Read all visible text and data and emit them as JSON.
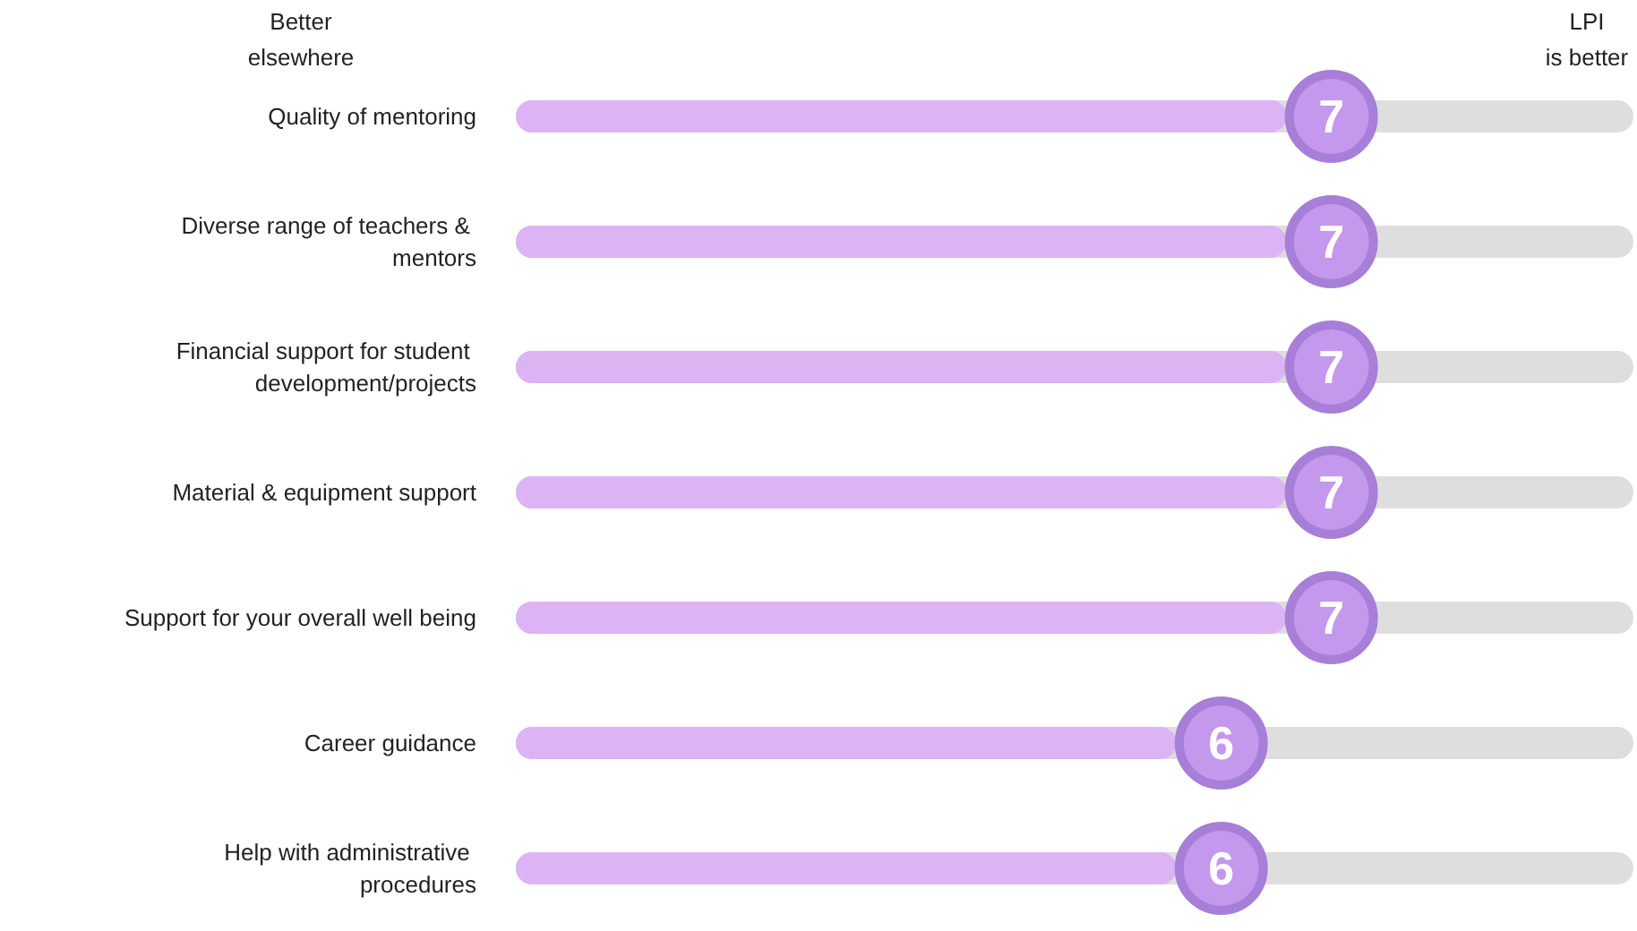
{
  "chart_data": {
    "type": "bar",
    "orientation": "horizontal",
    "categories": [
      "Quality of mentoring",
      "Diverse range of teachers & mentors",
      "Financial support for student development/projects",
      "Material & equipment support",
      "Support for your overall well being",
      "Career guidance",
      "Help with administrative procedures"
    ],
    "values": [
      7,
      7,
      7,
      7,
      7,
      6,
      6
    ],
    "color": "#dcb4f4",
    "tick_labels": "y",
    "data_labels": true,
    "annotations": [
      "Better elsewhere",
      "LPI is better"
    ]
  }
}
